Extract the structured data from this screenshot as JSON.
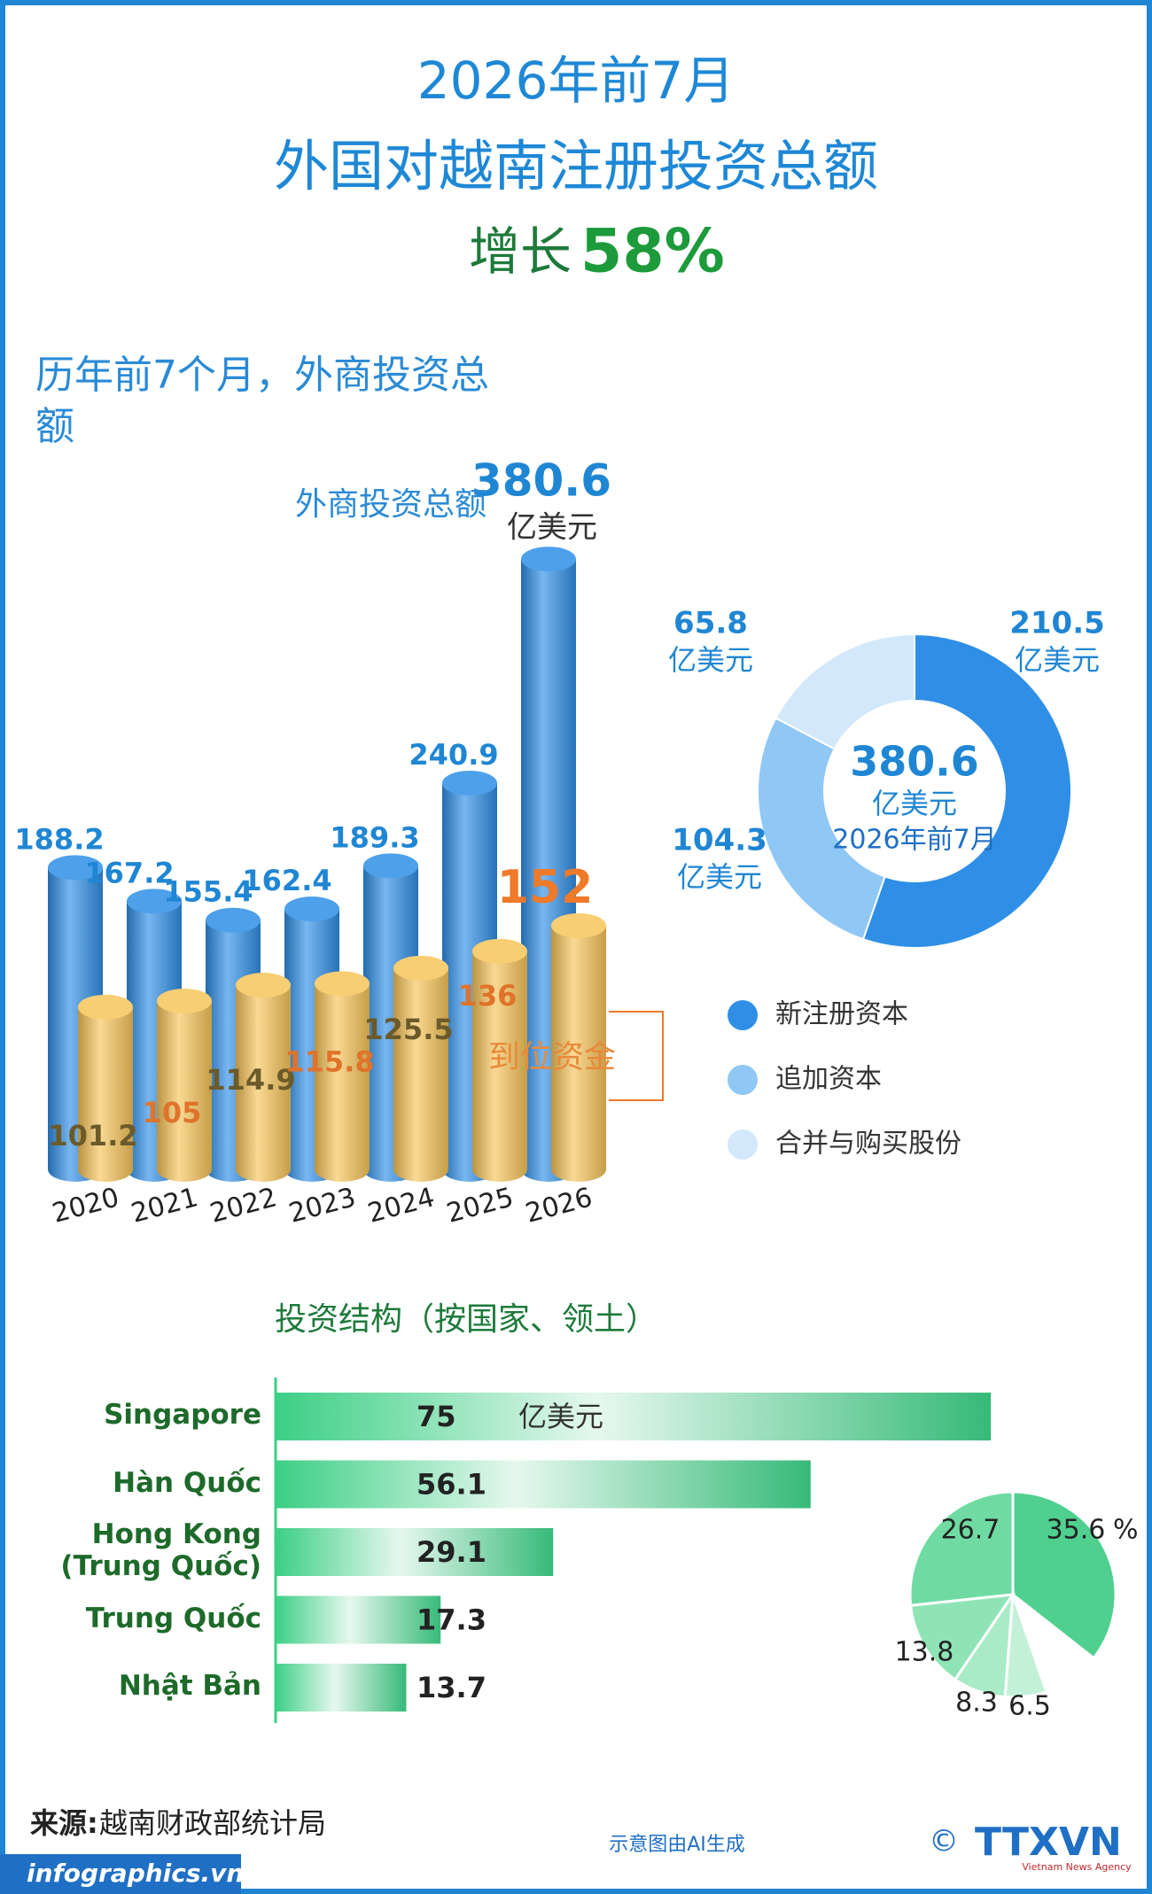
{
  "header": {
    "title_line1": "2026年前7月",
    "title_line2": "外国对越南注册投资总额",
    "growth_prefix": "增长",
    "growth_value": "58%"
  },
  "chart_data": [
    {
      "type": "bar",
      "title": "历年前7个月，外商投资总额",
      "unit": "亿美元",
      "categories": [
        "2020",
        "2021",
        "2022",
        "2023",
        "2024",
        "2025",
        "2026"
      ],
      "series": [
        {
          "name": "外商投资总额",
          "color": "#2f8fe6",
          "values": [
            188.2,
            167.2,
            155.4,
            162.4,
            189.3,
            240.9,
            380.6
          ]
        },
        {
          "name": "到位资金",
          "color": "#f7c55a",
          "values": [
            101.2,
            105,
            114.9,
            115.8,
            125.5,
            136,
            152
          ]
        }
      ],
      "ylim": [
        0,
        400
      ]
    },
    {
      "type": "donut",
      "center_value": 380.6,
      "unit": "亿美元",
      "center_label": "2026年前7月",
      "categories": [
        "新注册资本",
        "追加资本",
        "合并与购买股份"
      ],
      "values": [
        210.5,
        104.3,
        65.8
      ],
      "colors": [
        "#2f8fe6",
        "#8fc7f5",
        "#d3e8fb"
      ]
    },
    {
      "type": "hbar",
      "title": "投资结构（按国家、领土）",
      "unit": "亿美元",
      "categories": [
        "Singapore",
        "Hàn Quốc",
        "Hong Kong\n(Trung Quốc)",
        "Trung Quốc",
        "Nhật Bản"
      ],
      "values": [
        75,
        56.1,
        29.1,
        17.3,
        13.7
      ],
      "color": "#3ccf85",
      "xlim": [
        0,
        80
      ]
    },
    {
      "type": "pie",
      "unit": "%",
      "values": [
        35.6,
        26.7,
        13.8,
        8.3,
        6.5
      ],
      "colors": [
        "#4fd08f",
        "#6fdba3",
        "#8fe4b6",
        "#a9ebc7",
        "#c3f1d8"
      ]
    }
  ],
  "footer": {
    "source_label": "来源:",
    "source": "越南财政部统计局",
    "ai_note": "示意图由AI生成",
    "site": "infographics.vn",
    "logo": "TTXVN",
    "logo_sub": "Vietnam News Agency"
  }
}
